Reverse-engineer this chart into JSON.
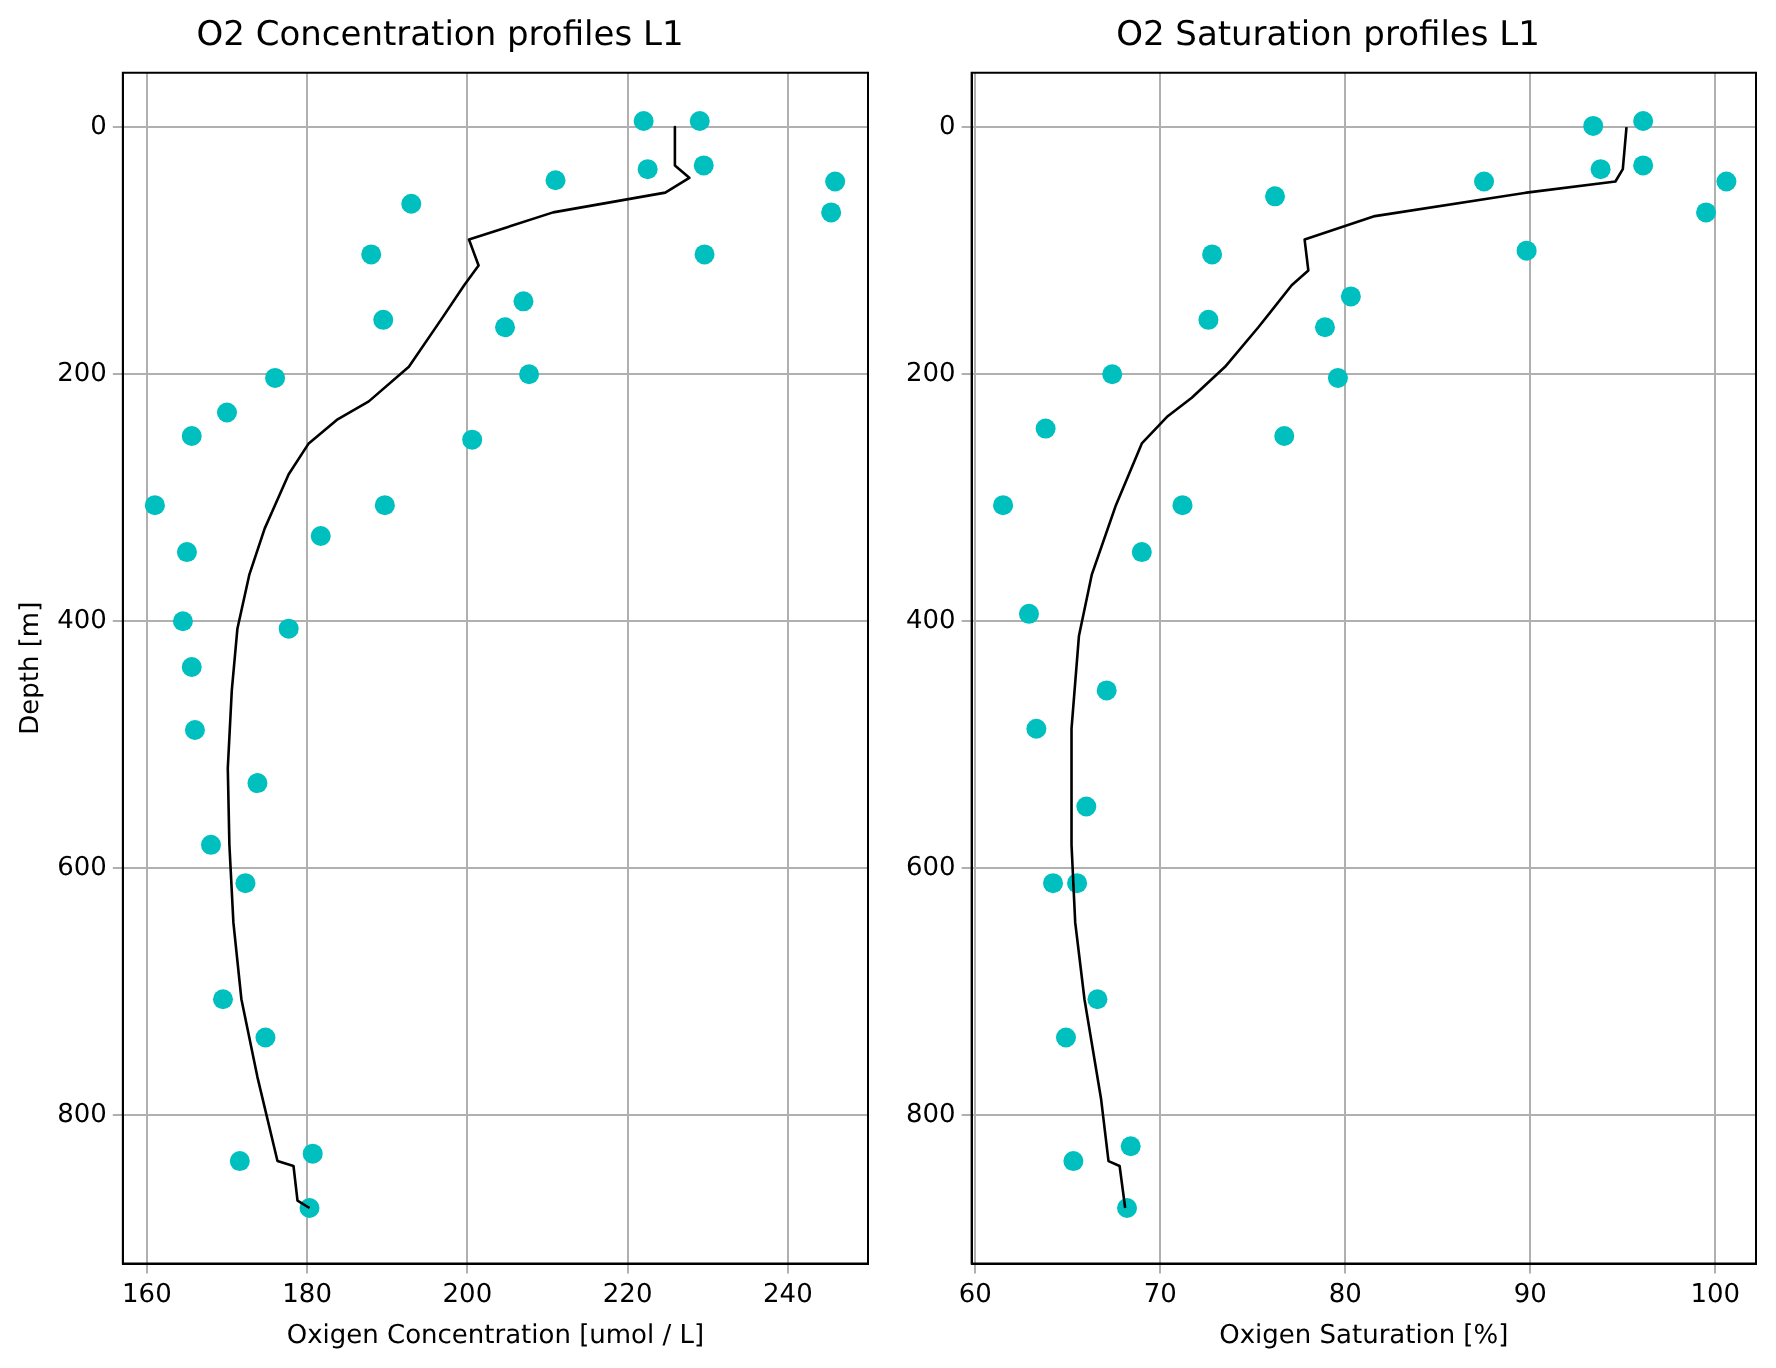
{
  "chart_data": [
    {
      "type": "scatter",
      "title": "O2 Concentration profiles L1",
      "xlabel": "Oxigen Concentration [umol / L]",
      "ylabel": "Depth [m]",
      "xlim": [
        157,
        250
      ],
      "xticks": [
        160,
        180,
        200,
        220,
        240
      ],
      "ylim": [
        920,
        -44
      ],
      "yticks": [
        0,
        200,
        400,
        600,
        800
      ],
      "grid": true,
      "legend": false,
      "series": [
        {
          "type": "scatter",
          "color": "#00bfbf",
          "x": [
            222,
            222.5,
            211,
            193,
            188,
            189.5,
            176,
            170,
            165.6,
            161,
            165,
            164.5,
            165.6,
            166,
            168,
            169.5,
            171.6,
            229,
            229.5,
            245.9,
            245.4,
            229.6,
            207,
            204.7,
            207.7,
            200.6,
            189.7,
            181.7,
            177.7,
            173.8,
            172.3,
            174.8,
            180.7,
            180.3
          ],
          "values": [
            -5,
            34,
            43,
            62,
            103,
            156,
            203,
            231,
            250,
            306,
            344,
            400,
            437,
            488,
            581,
            706,
            837,
            -5,
            31,
            44,
            69,
            103,
            141,
            162,
            200,
            253,
            306,
            331,
            406,
            531,
            612,
            737,
            831,
            875
          ]
        },
        {
          "type": "line",
          "color": "#000000",
          "x": [
            225.9,
            225.9,
            227.7,
            224.7,
            210.7,
            200.2,
            201.4,
            199.6,
            196.7,
            192.7,
            187.7,
            183.7,
            180.2,
            177.7,
            174.7,
            172.8,
            171.3,
            170.6,
            170.1,
            170.3,
            170.8,
            171.8,
            173.8,
            176.3,
            178.3,
            178.8,
            180.3
          ],
          "values": [
            0,
            31,
            41,
            53,
            69,
            91,
            112,
            128,
            156,
            194,
            222,
            237,
            256,
            281,
            325,
            362,
            406,
            456,
            519,
            581,
            644,
            706,
            769,
            837,
            841,
            869,
            875
          ]
        }
      ]
    },
    {
      "type": "scatter",
      "title": "O2 Saturation profiles L1",
      "xlabel": "Oxigen Saturation [%]",
      "xlim": [
        59.8,
        102.2
      ],
      "xticks": [
        60,
        70,
        80,
        90,
        100
      ],
      "ylim": [
        920,
        -44
      ],
      "yticks": [
        0,
        200,
        400,
        600,
        800
      ],
      "grid": true,
      "legend": false,
      "series": [
        {
          "type": "scatter",
          "color": "#00bfbf",
          "x": [
            93.4,
            93.8,
            87.5,
            76.2,
            72.8,
            72.6,
            67.4,
            63.8,
            61.5,
            62.9,
            63.3,
            64.2,
            64.9,
            65.3,
            96.1,
            96.1,
            100.6,
            99.5,
            89.8,
            80.3,
            78.9,
            79.6,
            76.7,
            71.2,
            69,
            67.1,
            66,
            65.5,
            66.6,
            68.4,
            68.2
          ],
          "values": [
            -1,
            34,
            44,
            56,
            103,
            156,
            200,
            244,
            306,
            394,
            487,
            612,
            737,
            837,
            -5,
            31,
            44,
            69,
            100,
            137,
            162,
            203,
            250,
            306,
            344,
            456,
            550,
            612,
            706,
            825,
            875
          ]
        },
        {
          "type": "line",
          "color": "#000000",
          "x": [
            95.2,
            95,
            94.6,
            89.8,
            81.6,
            77.8,
            78,
            77.1,
            75.3,
            73.5,
            71.7,
            70.4,
            69,
            67.6,
            66.3,
            65.6,
            65.2,
            65.2,
            65.4,
            65.9,
            66.8,
            67.2,
            67.8,
            68.1
          ],
          "values": [
            0,
            34,
            44,
            53,
            72,
            91,
            116,
            128,
            162,
            194,
            219,
            234,
            256,
            306,
            362,
            412,
            487,
            581,
            644,
            706,
            787,
            837,
            841,
            875
          ]
        }
      ]
    }
  ]
}
